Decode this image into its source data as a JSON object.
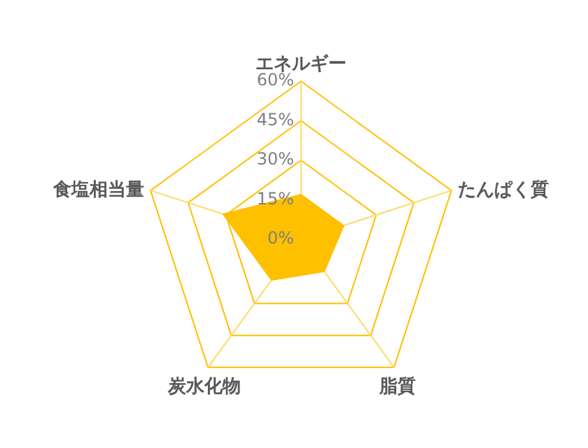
{
  "chart_data": {
    "type": "radar",
    "categories": [
      "エネルギー",
      "たんぱく質",
      "脂質",
      "炭水化物",
      "食塩相当量"
    ],
    "series": [
      {
        "color": "#ffc000",
        "values": [
          17,
          17,
          15,
          19,
          31
        ]
      }
    ],
    "ylim": [
      0,
      60
    ],
    "yticks": [
      {
        "value": 0,
        "label": "0%"
      },
      {
        "value": 15,
        "label": "15%"
      },
      {
        "value": 30,
        "label": "30%"
      },
      {
        "value": 45,
        "label": "45%"
      },
      {
        "value": 60,
        "label": "60%"
      }
    ],
    "grid": true
  }
}
